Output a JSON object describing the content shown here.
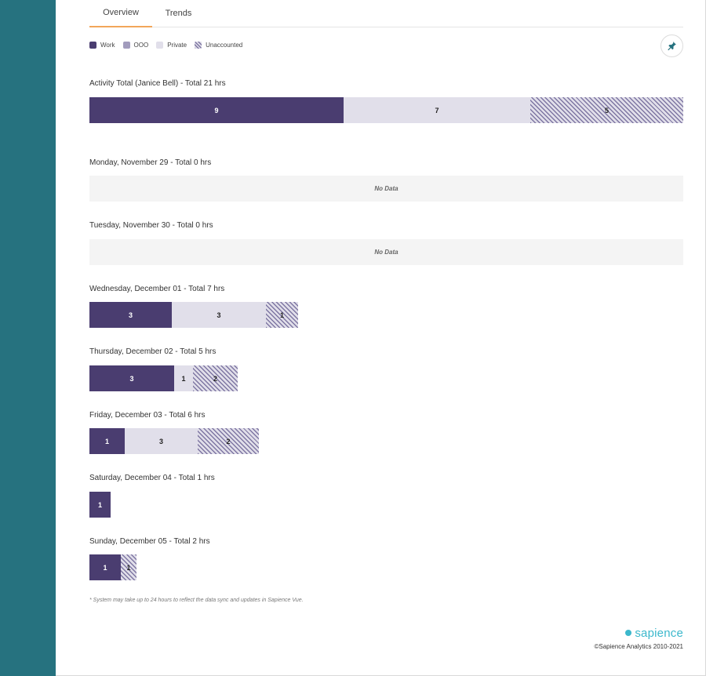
{
  "tabs": [
    {
      "label": "Overview",
      "active": true
    },
    {
      "label": "Trends",
      "active": false
    }
  ],
  "legend": [
    {
      "label": "Work",
      "color": "#4a3d70"
    },
    {
      "label": "OOO",
      "color": "#a29cbd"
    },
    {
      "label": "Private",
      "color": "#e1dfea"
    },
    {
      "label": "Unaccounted",
      "color": "hatched"
    }
  ],
  "pin_icon": "pin-icon",
  "total": {
    "title": "Activity Total (Janice Bell) - Total 21 hrs",
    "segments": [
      {
        "type": "work",
        "value": "9"
      },
      {
        "type": "private",
        "value": "7"
      },
      {
        "type": "unaccounted",
        "value": "5"
      }
    ]
  },
  "days": [
    {
      "title": "Monday, November 29 - Total 0 hrs",
      "no_data": "No Data",
      "segments": []
    },
    {
      "title": "Tuesday, November 30 - Total 0 hrs",
      "no_data": "No Data",
      "segments": []
    },
    {
      "title": "Wednesday, December 01 - Total 7 hrs",
      "segments": [
        {
          "type": "work",
          "value": "3"
        },
        {
          "type": "private",
          "value": "3"
        },
        {
          "type": "unaccounted",
          "value": "1"
        }
      ]
    },
    {
      "title": "Thursday, December 02 - Total 5 hrs",
      "segments": [
        {
          "type": "work",
          "value": "3"
        },
        {
          "type": "private",
          "value": "1"
        },
        {
          "type": "unaccounted",
          "value": "2"
        }
      ]
    },
    {
      "title": "Friday, December 03 - Total 6 hrs",
      "segments": [
        {
          "type": "work",
          "value": "1"
        },
        {
          "type": "private",
          "value": "3"
        },
        {
          "type": "unaccounted",
          "value": "2"
        }
      ]
    },
    {
      "title": "Saturday, December 04 - Total 1 hrs",
      "segments": [
        {
          "type": "work",
          "value": "1"
        }
      ]
    },
    {
      "title": "Sunday, December 05 - Total 2 hrs",
      "segments": [
        {
          "type": "work",
          "value": "1"
        },
        {
          "type": "unaccounted",
          "value": "1"
        }
      ]
    }
  ],
  "footnote": "* System may take up to 24 hours to reflect the data sync and updates in Sapience Vue.",
  "brand": "sapience",
  "copyright": "©Sapience Analytics 2010-2021"
}
